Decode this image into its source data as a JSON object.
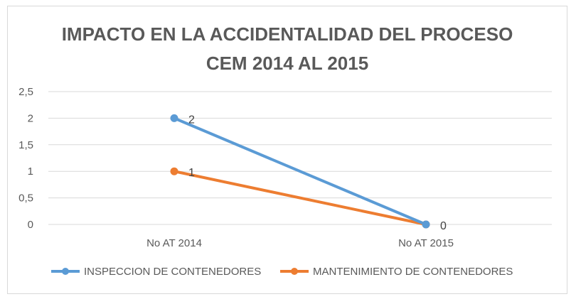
{
  "chart_data": {
    "type": "line",
    "title_lines": [
      "IMPACTO EN LA ACCIDENTALIDAD DEL PROCESO",
      "CEM 2014 AL 2015"
    ],
    "categories": [
      "No AT 2014",
      "No AT 2015"
    ],
    "y_ticks": [
      "0",
      "0,5",
      "1",
      "1,5",
      "2",
      "2,5"
    ],
    "ylim": [
      0,
      2.5
    ],
    "grid": true,
    "legend_position": "bottom",
    "series": [
      {
        "name": "INSPECCION DE CONTENEDORES",
        "values": [
          2,
          0
        ],
        "labels": [
          "2",
          "0"
        ],
        "color": "#5b9bd5"
      },
      {
        "name": "MANTENIMIENTO DE CONTENEDORES",
        "values": [
          1,
          0
        ],
        "labels": [
          "1",
          ""
        ],
        "color": "#ed7d31"
      }
    ]
  }
}
